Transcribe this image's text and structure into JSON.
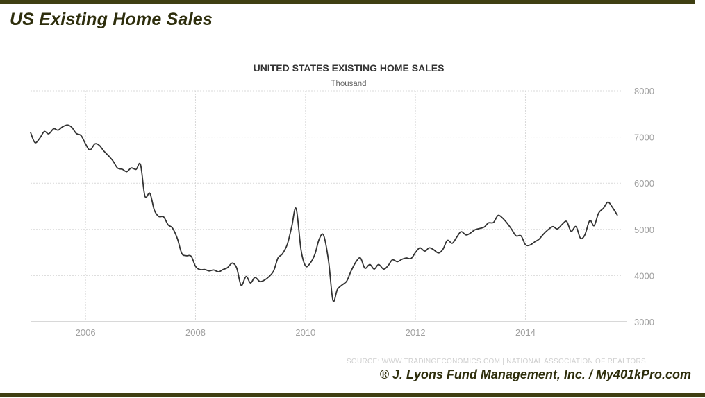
{
  "page": {
    "title": "US Existing Home Sales",
    "credit": "® J. Lyons Fund Management, Inc. / My401kPro.com"
  },
  "chart_data": {
    "type": "line",
    "title": "UNITED STATES EXISTING HOME SALES",
    "subtitle": "Thousand",
    "source": "SOURCE: WWW.TRADINGECONOMICS.COM  |  NATIONAL ASSOCIATION OF REALTORS",
    "xlabel": "",
    "ylabel": "",
    "xlim": [
      2005.0,
      2015.75
    ],
    "ylim": [
      3000,
      8000
    ],
    "x_ticks": [
      2006,
      2008,
      2010,
      2012,
      2014
    ],
    "x_tick_labels": [
      "2006",
      "2008",
      "2010",
      "2012",
      "2014"
    ],
    "y_ticks": [
      3000,
      4000,
      5000,
      6000,
      7000,
      8000
    ],
    "y_tick_labels": [
      "3000",
      "4000",
      "5000",
      "6000",
      "7000",
      "8000"
    ],
    "y_axis_position": "right",
    "grid": true,
    "legend": "none",
    "line_color": "#333333",
    "series": [
      {
        "points": [
          [
            2005.0,
            7100
          ],
          [
            2005.08,
            6880
          ],
          [
            2005.17,
            6980
          ],
          [
            2005.25,
            7120
          ],
          [
            2005.33,
            7070
          ],
          [
            2005.42,
            7180
          ],
          [
            2005.5,
            7150
          ],
          [
            2005.58,
            7220
          ],
          [
            2005.67,
            7260
          ],
          [
            2005.75,
            7210
          ],
          [
            2005.83,
            7080
          ],
          [
            2005.92,
            7030
          ],
          [
            2006.0,
            6850
          ],
          [
            2006.08,
            6720
          ],
          [
            2006.17,
            6850
          ],
          [
            2006.25,
            6820
          ],
          [
            2006.33,
            6700
          ],
          [
            2006.42,
            6590
          ],
          [
            2006.5,
            6480
          ],
          [
            2006.58,
            6330
          ],
          [
            2006.67,
            6300
          ],
          [
            2006.75,
            6250
          ],
          [
            2006.83,
            6330
          ],
          [
            2006.92,
            6300
          ],
          [
            2007.0,
            6400
          ],
          [
            2007.08,
            5720
          ],
          [
            2007.17,
            5780
          ],
          [
            2007.25,
            5420
          ],
          [
            2007.33,
            5280
          ],
          [
            2007.42,
            5270
          ],
          [
            2007.5,
            5100
          ],
          [
            2007.58,
            5030
          ],
          [
            2007.67,
            4800
          ],
          [
            2007.75,
            4480
          ],
          [
            2007.83,
            4430
          ],
          [
            2007.92,
            4420
          ],
          [
            2008.0,
            4200
          ],
          [
            2008.08,
            4130
          ],
          [
            2008.17,
            4130
          ],
          [
            2008.25,
            4100
          ],
          [
            2008.33,
            4120
          ],
          [
            2008.42,
            4080
          ],
          [
            2008.5,
            4130
          ],
          [
            2008.58,
            4170
          ],
          [
            2008.67,
            4270
          ],
          [
            2008.75,
            4160
          ],
          [
            2008.83,
            3790
          ],
          [
            2008.92,
            3980
          ],
          [
            2009.0,
            3840
          ],
          [
            2009.08,
            3960
          ],
          [
            2009.17,
            3870
          ],
          [
            2009.25,
            3900
          ],
          [
            2009.33,
            3970
          ],
          [
            2009.42,
            4100
          ],
          [
            2009.5,
            4380
          ],
          [
            2009.58,
            4470
          ],
          [
            2009.67,
            4680
          ],
          [
            2009.75,
            5060
          ],
          [
            2009.83,
            5450
          ],
          [
            2009.92,
            4550
          ],
          [
            2010.0,
            4210
          ],
          [
            2010.08,
            4260
          ],
          [
            2010.17,
            4460
          ],
          [
            2010.25,
            4790
          ],
          [
            2010.33,
            4870
          ],
          [
            2010.42,
            4310
          ],
          [
            2010.5,
            3460
          ],
          [
            2010.58,
            3700
          ],
          [
            2010.67,
            3800
          ],
          [
            2010.75,
            3880
          ],
          [
            2010.83,
            4100
          ],
          [
            2010.92,
            4300
          ],
          [
            2011.0,
            4380
          ],
          [
            2011.08,
            4160
          ],
          [
            2011.17,
            4240
          ],
          [
            2011.25,
            4140
          ],
          [
            2011.33,
            4240
          ],
          [
            2011.42,
            4140
          ],
          [
            2011.5,
            4210
          ],
          [
            2011.58,
            4340
          ],
          [
            2011.67,
            4300
          ],
          [
            2011.75,
            4350
          ],
          [
            2011.83,
            4380
          ],
          [
            2011.92,
            4370
          ],
          [
            2012.0,
            4500
          ],
          [
            2012.08,
            4600
          ],
          [
            2012.17,
            4530
          ],
          [
            2012.25,
            4600
          ],
          [
            2012.33,
            4560
          ],
          [
            2012.42,
            4490
          ],
          [
            2012.5,
            4570
          ],
          [
            2012.58,
            4760
          ],
          [
            2012.67,
            4700
          ],
          [
            2012.75,
            4830
          ],
          [
            2012.83,
            4950
          ],
          [
            2012.92,
            4880
          ],
          [
            2013.0,
            4920
          ],
          [
            2013.08,
            4990
          ],
          [
            2013.17,
            5020
          ],
          [
            2013.25,
            5050
          ],
          [
            2013.33,
            5140
          ],
          [
            2013.42,
            5150
          ],
          [
            2013.5,
            5300
          ],
          [
            2013.58,
            5250
          ],
          [
            2013.67,
            5130
          ],
          [
            2013.75,
            5000
          ],
          [
            2013.83,
            4860
          ],
          [
            2013.92,
            4860
          ],
          [
            2014.0,
            4670
          ],
          [
            2014.08,
            4660
          ],
          [
            2014.17,
            4730
          ],
          [
            2014.25,
            4790
          ],
          [
            2014.33,
            4900
          ],
          [
            2014.42,
            5000
          ],
          [
            2014.5,
            5060
          ],
          [
            2014.58,
            5010
          ],
          [
            2014.67,
            5110
          ],
          [
            2014.75,
            5170
          ],
          [
            2014.83,
            4960
          ],
          [
            2014.92,
            5060
          ],
          [
            2015.0,
            4810
          ],
          [
            2015.08,
            4880
          ],
          [
            2015.17,
            5190
          ],
          [
            2015.25,
            5080
          ],
          [
            2015.33,
            5350
          ],
          [
            2015.42,
            5460
          ],
          [
            2015.5,
            5590
          ],
          [
            2015.58,
            5480
          ],
          [
            2015.67,
            5310
          ]
        ]
      }
    ]
  }
}
